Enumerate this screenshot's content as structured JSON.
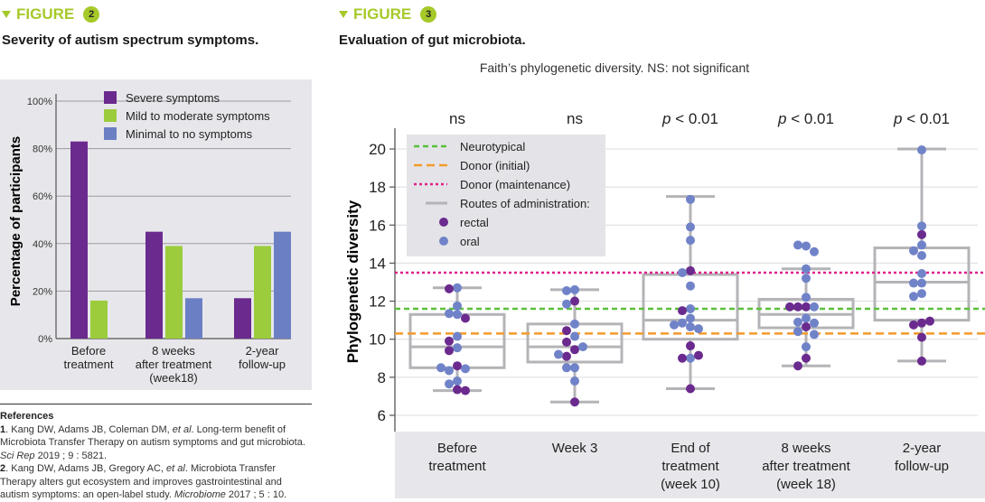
{
  "figure2": {
    "label": "FIGURE",
    "number": "2",
    "title": "Severity of autism spectrum symptoms."
  },
  "figure3": {
    "label": "FIGURE",
    "number": "3",
    "title": "Evaluation of gut microbiota."
  },
  "references": {
    "heading": "References",
    "items": [
      {
        "num": "1",
        "text_a": ". Kang DW, Adams JB, Coleman DM, ",
        "etal": "et al",
        "text_b": ". Long-term benefit of Microbiota Transfer Therapy on autism symptoms and gut microbiota. ",
        "journal": "Sci Rep",
        "text_c": " 2019 ; 9 : 5821."
      },
      {
        "num": "2",
        "text_a": ". Kang DW, Adams JB, Gregory AC, ",
        "etal": "et al",
        "text_b": ". Microbiota Transfer Therapy alters gut ecosystem and improves gastrointestinal and autism symptoms: an open-label study. ",
        "journal": "Microbiome",
        "text_c": " 2017 ; 5 : 10."
      }
    ]
  },
  "colors": {
    "accent": "#a6c92a",
    "severe": "#6b2a8e",
    "mild": "#9ccc3c",
    "minimal": "#6b7fc4",
    "rectal": "#6b2a8e",
    "oral": "#7083c8",
    "neurotypical": "#5bbf3a",
    "donor_initial": "#f39a2b",
    "donor_maintenance": "#e0208a",
    "box": "#b4b4b8",
    "panel": "#e7e7eb"
  },
  "chart_data": [
    {
      "type": "bar",
      "title": "Severity of autism spectrum symptoms.",
      "ylabel": "Percentage of participants",
      "ylim": [
        0,
        100
      ],
      "yticks": [
        "0%",
        "20%",
        "40%",
        "60%",
        "80%",
        "100%"
      ],
      "grid": true,
      "legend": "top",
      "categories": [
        [
          "Before",
          "treatment"
        ],
        [
          "8 weeks",
          "after treatment",
          "(week18)"
        ],
        [
          "2-year",
          "follow-up"
        ]
      ],
      "series": [
        {
          "name": "Severe symptoms",
          "color": "#6b2a8e",
          "values": [
            83,
            45,
            17
          ]
        },
        {
          "name": "Mild to moderate symptoms",
          "color": "#9ccc3c",
          "values": [
            16,
            39,
            39
          ]
        },
        {
          "name": "Minimal to no symptoms",
          "color": "#6b7fc4",
          "values": [
            0,
            17,
            45
          ]
        }
      ]
    },
    {
      "type": "box",
      "title": "Faith’s phylogenetic diversity. NS: not significant",
      "ylabel": "Phylogenetic diversity",
      "ylim": [
        6,
        20.5
      ],
      "yticks": [
        6,
        8,
        10,
        12,
        14,
        16,
        18,
        20
      ],
      "grid": true,
      "legend": "top-left",
      "legend_entries": [
        "Neurotypical",
        "Donor (initial)",
        "Donor (maintenance)",
        "Routes of administration:",
        "rectal",
        "oral"
      ],
      "reference_lines": [
        {
          "name": "Neurotypical",
          "value": 11.6,
          "color": "#5bbf3a",
          "style": "dashed"
        },
        {
          "name": "Donor (initial)",
          "value": 10.3,
          "color": "#f39a2b",
          "style": "long-dashed"
        },
        {
          "name": "Donor (maintenance)",
          "value": 13.5,
          "color": "#e0208a",
          "style": "dotted"
        }
      ],
      "groups": [
        {
          "label": [
            "Before",
            "treatment"
          ],
          "significance": {
            "prefix": "",
            "text": "ns"
          },
          "whisker_low": 7.3,
          "q1": 8.5,
          "median": 9.6,
          "q3": 11.3,
          "whisker_high": 12.7,
          "points": [
            [
              12.7,
              "o"
            ],
            [
              12.65,
              "r"
            ],
            [
              11.75,
              "o"
            ],
            [
              11.3,
              "o"
            ],
            [
              11.35,
              "o"
            ],
            [
              11.1,
              "r"
            ],
            [
              10.15,
              "o"
            ],
            [
              9.9,
              "r"
            ],
            [
              9.55,
              "o"
            ],
            [
              9.4,
              "r"
            ],
            [
              8.6,
              "r"
            ],
            [
              8.35,
              "o"
            ],
            [
              8.45,
              "o"
            ],
            [
              8.5,
              "o"
            ],
            [
              7.8,
              "o"
            ],
            [
              7.65,
              "o"
            ],
            [
              7.35,
              "r"
            ],
            [
              7.3,
              "r"
            ]
          ]
        },
        {
          "label": [
            "Week 3"
          ],
          "significance": {
            "prefix": "",
            "text": "ns"
          },
          "whisker_low": 6.7,
          "q1": 8.8,
          "median": 9.6,
          "q3": 10.8,
          "whisker_high": 12.6,
          "points": [
            [
              12.6,
              "o"
            ],
            [
              12.55,
              "o"
            ],
            [
              12.0,
              "r"
            ],
            [
              11.85,
              "o"
            ],
            [
              10.8,
              "o"
            ],
            [
              10.45,
              "r"
            ],
            [
              10.15,
              "o"
            ],
            [
              9.85,
              "r"
            ],
            [
              9.45,
              "r"
            ],
            [
              9.6,
              "o"
            ],
            [
              9.1,
              "r"
            ],
            [
              9.2,
              "o"
            ],
            [
              8.5,
              "o"
            ],
            [
              8.5,
              "o"
            ],
            [
              7.8,
              "o"
            ],
            [
              6.7,
              "r"
            ]
          ]
        },
        {
          "label": [
            "End of",
            "treatment",
            "(week 10)"
          ],
          "significance": {
            "prefix": "p",
            "text": " < 0.01"
          },
          "whisker_low": 7.4,
          "q1": 10.0,
          "median": 11.0,
          "q3": 13.4,
          "whisker_high": 17.5,
          "points": [
            [
              17.35,
              "o"
            ],
            [
              15.9,
              "o"
            ],
            [
              15.2,
              "o"
            ],
            [
              13.6,
              "r"
            ],
            [
              13.5,
              "o"
            ],
            [
              12.8,
              "o"
            ],
            [
              11.6,
              "o"
            ],
            [
              11.5,
              "r"
            ],
            [
              11.1,
              "o"
            ],
            [
              10.85,
              "o"
            ],
            [
              10.65,
              "o"
            ],
            [
              10.55,
              "o"
            ],
            [
              10.75,
              "o"
            ],
            [
              9.65,
              "r"
            ],
            [
              9.0,
              "o"
            ],
            [
              9.0,
              "r"
            ],
            [
              9.15,
              "r"
            ],
            [
              7.4,
              "r"
            ]
          ]
        },
        {
          "label": [
            "8 weeks",
            "after treatment",
            "(week 18)"
          ],
          "significance": {
            "prefix": "p",
            "text": " < 0.01"
          },
          "whisker_low": 8.6,
          "q1": 10.6,
          "median": 11.3,
          "q3": 12.1,
          "whisker_high": 13.7,
          "points": [
            [
              14.9,
              "o"
            ],
            [
              14.95,
              "o"
            ],
            [
              14.6,
              "o"
            ],
            [
              13.7,
              "o"
            ],
            [
              13.2,
              "o"
            ],
            [
              12.2,
              "o"
            ],
            [
              11.7,
              "r"
            ],
            [
              11.7,
              "r"
            ],
            [
              11.7,
              "o"
            ],
            [
              11.7,
              "r"
            ],
            [
              11.1,
              "o"
            ],
            [
              10.9,
              "o"
            ],
            [
              10.85,
              "o"
            ],
            [
              10.65,
              "r"
            ],
            [
              10.4,
              "o"
            ],
            [
              10.25,
              "o"
            ],
            [
              9.6,
              "o"
            ],
            [
              9.0,
              "r"
            ],
            [
              8.6,
              "r"
            ]
          ]
        },
        {
          "label": [
            "2-year",
            "follow-up"
          ],
          "significance": {
            "prefix": "p",
            "text": " < 0.01"
          },
          "whisker_low": 8.85,
          "q1": 11.0,
          "median": 13.0,
          "q3": 14.8,
          "whisker_high": 20.0,
          "points": [
            [
              19.95,
              "o"
            ],
            [
              15.95,
              "o"
            ],
            [
              15.5,
              "r"
            ],
            [
              14.95,
              "o"
            ],
            [
              14.65,
              "o"
            ],
            [
              14.4,
              "o"
            ],
            [
              13.45,
              "o"
            ],
            [
              12.95,
              "o"
            ],
            [
              12.95,
              "o"
            ],
            [
              12.4,
              "o"
            ],
            [
              12.25,
              "o"
            ],
            [
              10.85,
              "r"
            ],
            [
              10.75,
              "r"
            ],
            [
              10.95,
              "r"
            ],
            [
              10.1,
              "r"
            ],
            [
              8.85,
              "r"
            ]
          ]
        }
      ]
    }
  ]
}
